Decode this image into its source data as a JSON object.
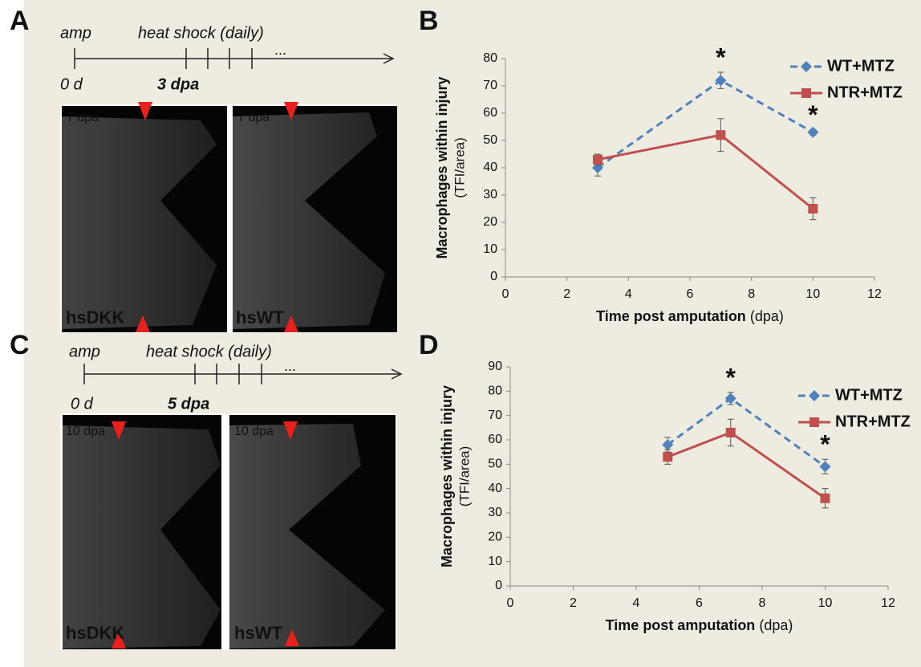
{
  "panel_labels": [
    "A",
    "B",
    "C",
    "D"
  ],
  "timelines": [
    {
      "start_label": "amp",
      "treatment": "heat shock (daily)",
      "origin": "0 d",
      "onset": "3 dpa",
      "continues": "..."
    },
    {
      "start_label": "amp",
      "treatment": "heat shock (daily)",
      "origin": "0 d",
      "onset": "5 dpa",
      "continues": "..."
    }
  ],
  "images": [
    {
      "timepoint": "7 dpa",
      "labels": [
        "hsDKK",
        "hsWT"
      ]
    },
    {
      "timepoint": "10 dpa",
      "labels": [
        "hsDKK",
        "hsWT"
      ]
    }
  ],
  "chart_data": [
    {
      "type": "line",
      "ylabel": "Macrophages within injury",
      "ylabel_unit": "(TFI/area)",
      "xlabel": "Time post amputation",
      "xlabel_unit": "(dpa)",
      "x": [
        3,
        7,
        10
      ],
      "xlim": [
        0,
        12
      ],
      "xticks": [
        0,
        2,
        4,
        6,
        8,
        10,
        12
      ],
      "ylim": [
        0,
        80
      ],
      "yticks": [
        0,
        10,
        20,
        30,
        40,
        50,
        60,
        70,
        80
      ],
      "grid": false,
      "legend": "upper right",
      "series": [
        {
          "name": "WT+MTZ",
          "color": "#4f81bd",
          "dashed": true,
          "marker": "diamond",
          "values": [
            40,
            72,
            53
          ],
          "errors": [
            3,
            3,
            1
          ]
        },
        {
          "name": "NTR+MTZ",
          "color": "#c0504d",
          "dashed": false,
          "marker": "square",
          "values": [
            43,
            52,
            25
          ],
          "errors": [
            2,
            6,
            4
          ]
        }
      ],
      "annotations": [
        {
          "text": "*",
          "x": 7
        },
        {
          "text": "*",
          "x": 10
        }
      ]
    },
    {
      "type": "line",
      "ylabel": "Macrophages within injury",
      "ylabel_unit": "(TFI/area)",
      "xlabel": "Time post amputation",
      "xlabel_unit": "(dpa)",
      "x": [
        5,
        7,
        10
      ],
      "xlim": [
        0,
        12
      ],
      "xticks": [
        0,
        2,
        4,
        6,
        8,
        10,
        12
      ],
      "ylim": [
        0,
        90
      ],
      "yticks": [
        0,
        10,
        20,
        30,
        40,
        50,
        60,
        70,
        80,
        90
      ],
      "grid": false,
      "legend": "upper right",
      "series": [
        {
          "name": "WT+MTZ",
          "color": "#4f81bd",
          "dashed": true,
          "marker": "diamond",
          "values": [
            58,
            77,
            49
          ],
          "errors": [
            3,
            2.5,
            3
          ]
        },
        {
          "name": "NTR+MTZ",
          "color": "#c0504d",
          "dashed": false,
          "marker": "square",
          "values": [
            53,
            63,
            36
          ],
          "errors": [
            3,
            5.5,
            4
          ]
        }
      ],
      "annotations": [
        {
          "text": "*",
          "x": 7
        },
        {
          "text": "*",
          "x": 10
        }
      ]
    }
  ]
}
